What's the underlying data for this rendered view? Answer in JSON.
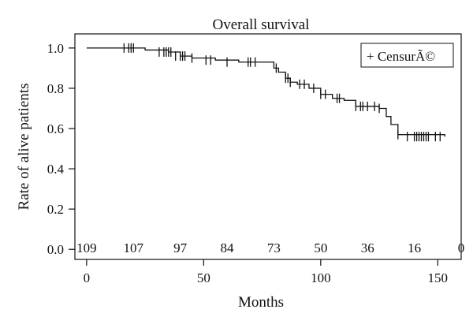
{
  "chart_data": {
    "type": "line",
    "title": "Overall survival",
    "xlabel": "Months",
    "ylabel": "Rate of alive patients",
    "xlim": [
      -5,
      160
    ],
    "ylim": [
      -0.05,
      1.07
    ],
    "xticks": [
      0,
      50,
      100,
      150
    ],
    "yticks": [
      0.0,
      0.2,
      0.4,
      0.6,
      0.8,
      1.0
    ],
    "xtick_labels": [
      "0",
      "50",
      "100",
      "150"
    ],
    "ytick_labels": [
      "0.0",
      "0.2",
      "0.4",
      "0.6",
      "0.8",
      "1.0"
    ],
    "legend": {
      "label": "+ CensurÃ©",
      "position": "top-right"
    },
    "grid": false,
    "series": [
      {
        "name": "",
        "step_x": [
          0,
          20,
          25,
          35,
          40,
          45,
          55,
          65,
          70,
          80,
          82,
          85,
          87,
          90,
          95,
          100,
          105,
          110,
          115,
          125,
          128,
          130,
          133,
          153
        ],
        "step_y": [
          1.0,
          1.0,
          0.99,
          0.98,
          0.96,
          0.95,
          0.94,
          0.93,
          0.93,
          0.9,
          0.88,
          0.85,
          0.83,
          0.82,
          0.8,
          0.77,
          0.75,
          0.74,
          0.71,
          0.7,
          0.66,
          0.62,
          0.57,
          0.56
        ],
        "censor_x": [
          16,
          18,
          19,
          20,
          31,
          33,
          34,
          35,
          36,
          38,
          40,
          41,
          42,
          45,
          51,
          53,
          60,
          69,
          70,
          72,
          81,
          85,
          86,
          87,
          91,
          93,
          97,
          100,
          102,
          107,
          108,
          115,
          117,
          118,
          120,
          123,
          125,
          133,
          137,
          140,
          141,
          142,
          143,
          144,
          145,
          146,
          149,
          151
        ],
        "censor_y": [
          1.0,
          1.0,
          1.0,
          1.0,
          0.98,
          0.98,
          0.98,
          0.98,
          0.98,
          0.96,
          0.96,
          0.96,
          0.96,
          0.95,
          0.94,
          0.94,
          0.93,
          0.93,
          0.93,
          0.93,
          0.9,
          0.85,
          0.85,
          0.83,
          0.82,
          0.82,
          0.8,
          0.77,
          0.77,
          0.75,
          0.75,
          0.71,
          0.71,
          0.71,
          0.71,
          0.71,
          0.7,
          0.57,
          0.56,
          0.56,
          0.56,
          0.56,
          0.56,
          0.56,
          0.56,
          0.56,
          0.56,
          0.56
        ]
      }
    ],
    "at_risk": {
      "months": [
        0,
        20,
        40,
        60,
        80,
        100,
        120,
        140,
        160
      ],
      "counts": [
        "109",
        "107",
        "97",
        "84",
        "73",
        "50",
        "36",
        "16",
        "0"
      ]
    }
  }
}
